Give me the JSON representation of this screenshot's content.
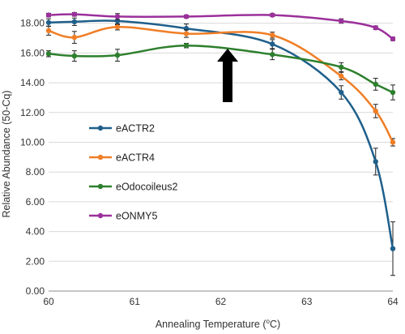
{
  "chart_data": {
    "type": "line",
    "title": "",
    "xlabel": "Annealing Temperature (",
    "xlabel_sup": "o",
    "xlabel_end": "C)",
    "ylabel": "Relative Abundance (50-Cq)",
    "xlim": [
      60,
      64
    ],
    "ylim": [
      0,
      18.8
    ],
    "x_ticks": [
      "60",
      "61",
      "62",
      "63",
      "64"
    ],
    "y_ticks": [
      "0.00",
      "2.00",
      "4.00",
      "6.00",
      "8.00",
      "10.00",
      "12.00",
      "14.00",
      "16.00",
      "18.00"
    ],
    "legend_placement": "left-middle",
    "annotation": "up-arrow at x=62",
    "series": [
      {
        "name": "eACTR2",
        "color": "#1f5f8b",
        "x": [
          60,
          60.3,
          60.8,
          61.6,
          62.6,
          63.4,
          63.8,
          64
        ],
        "y": [
          18.05,
          18.1,
          18.15,
          17.65,
          16.6,
          13.35,
          8.7,
          2.85
        ],
        "err": [
          0.25,
          0.25,
          0.25,
          0.3,
          0.3,
          0.45,
          0.9,
          1.8
        ]
      },
      {
        "name": "eACTR4",
        "color": "#f07e26",
        "x": [
          60,
          60.3,
          60.8,
          61.6,
          62.6,
          63.4,
          63.8,
          64
        ],
        "y": [
          17.5,
          17.05,
          17.75,
          17.3,
          17.2,
          14.45,
          12.1,
          10.0
        ],
        "err": [
          0.3,
          0.4,
          0.2,
          0.25,
          0.2,
          0.25,
          0.45,
          0.25
        ]
      },
      {
        "name": "eOdocoileus2",
        "color": "#2d7f2d",
        "x": [
          60,
          60.3,
          60.8,
          61.6,
          62.6,
          63.4,
          63.8,
          64
        ],
        "y": [
          15.95,
          15.8,
          15.85,
          16.5,
          15.9,
          15.05,
          13.9,
          13.35
        ],
        "err": [
          0.2,
          0.35,
          0.4,
          0.15,
          0.35,
          0.3,
          0.4,
          0.5
        ]
      },
      {
        "name": "eONMY5",
        "color": "#9b309b",
        "x": [
          60,
          60.3,
          60.8,
          61.6,
          62.6,
          63.4,
          63.8,
          64
        ],
        "y": [
          18.55,
          18.6,
          18.45,
          18.45,
          18.55,
          18.15,
          17.7,
          16.95
        ],
        "err": [
          0.12,
          0.12,
          0.2,
          0.1,
          0.1,
          0.15,
          0.12,
          0.12
        ]
      }
    ]
  }
}
